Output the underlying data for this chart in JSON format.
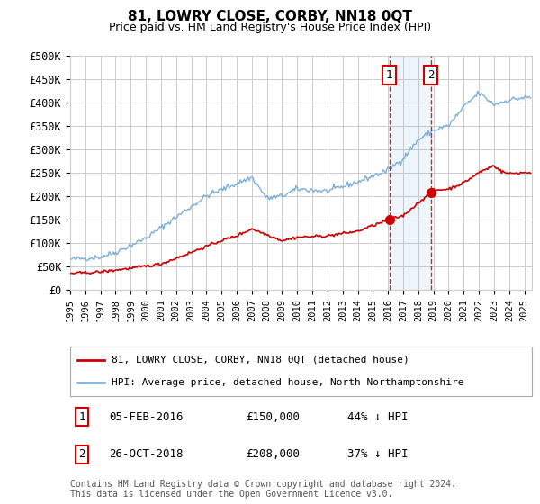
{
  "title": "81, LOWRY CLOSE, CORBY, NN18 0QT",
  "subtitle": "Price paid vs. HM Land Registry's House Price Index (HPI)",
  "ylim": [
    0,
    500000
  ],
  "yticks": [
    0,
    50000,
    100000,
    150000,
    200000,
    250000,
    300000,
    350000,
    400000,
    450000,
    500000
  ],
  "ytick_labels": [
    "£0",
    "£50K",
    "£100K",
    "£150K",
    "£200K",
    "£250K",
    "£300K",
    "£350K",
    "£400K",
    "£450K",
    "£500K"
  ],
  "hpi_color": "#7aaedb",
  "price_color": "#cc0000",
  "grid_color": "#cccccc",
  "bg_color": "#ffffff",
  "transaction1_date": 2016.09,
  "transaction1_price": 150000,
  "transaction2_date": 2018.82,
  "transaction2_price": 208000,
  "legend_label_price": "81, LOWRY CLOSE, CORBY, NN18 0QT (detached house)",
  "legend_label_hpi": "HPI: Average price, detached house, North Northamptonshire",
  "note1_date": "05-FEB-2016",
  "note1_price": "£150,000",
  "note1_pct": "44% ↓ HPI",
  "note2_date": "26-OCT-2018",
  "note2_price": "£208,000",
  "note2_pct": "37% ↓ HPI",
  "footer": "Contains HM Land Registry data © Crown copyright and database right 2024.\nThis data is licensed under the Open Government Licence v3.0.",
  "xstart": 1995.0,
  "xend": 2025.5
}
